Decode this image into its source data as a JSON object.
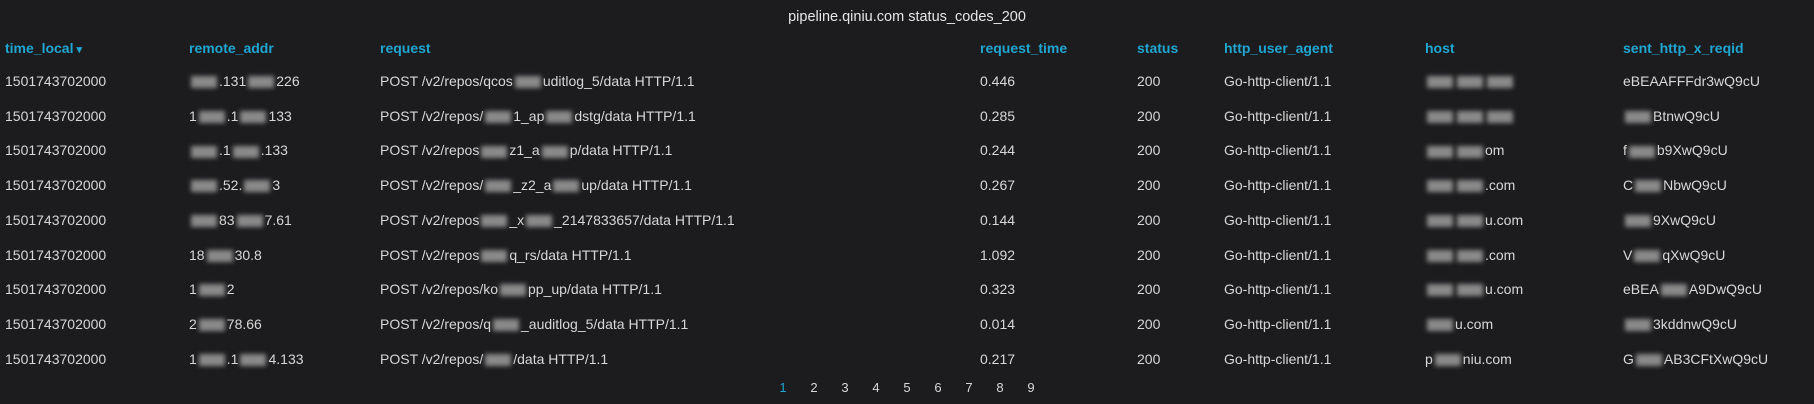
{
  "title": "pipeline.qiniu.com status_codes_200",
  "columns": [
    "time_local",
    "remote_addr",
    "request",
    "request_time",
    "status",
    "http_user_agent",
    "host",
    "sent_http_x_reqid"
  ],
  "sort_indicator": "▾",
  "accent_color": "#1fa6d2",
  "redacted_marker": "[redacted]",
  "rows": [
    [
      [
        "1501743702000"
      ],
      [
        null,
        ".131",
        null,
        "226"
      ],
      [
        "POST /v2/repos/qcos",
        null,
        "uditlog_5/data HTTP/1.1"
      ],
      [
        "0.446"
      ],
      [
        "200"
      ],
      [
        "Go-http-client/1.1"
      ],
      [
        null,
        null,
        null
      ],
      [
        "eBEAAFFFdr3wQ9cU"
      ]
    ],
    [
      [
        "1501743702000"
      ],
      [
        "1",
        null,
        ".1",
        null,
        "133"
      ],
      [
        "POST /v2/repos/",
        null,
        "1_ap",
        null,
        "dstg/data HTTP/1.1"
      ],
      [
        "0.285"
      ],
      [
        "200"
      ],
      [
        "Go-http-client/1.1"
      ],
      [
        null,
        null,
        null
      ],
      [
        null,
        "BtnwQ9cU"
      ]
    ],
    [
      [
        "1501743702000"
      ],
      [
        null,
        ".1",
        null,
        ".133"
      ],
      [
        "POST /v2/repos",
        null,
        "z1_a",
        null,
        "p/data HTTP/1.1"
      ],
      [
        "0.244"
      ],
      [
        "200"
      ],
      [
        "Go-http-client/1.1"
      ],
      [
        null,
        null,
        "om"
      ],
      [
        "f",
        null,
        "b9XwQ9cU"
      ]
    ],
    [
      [
        "1501743702000"
      ],
      [
        null,
        ".52.",
        null,
        "3"
      ],
      [
        "POST /v2/repos/",
        null,
        "_z2_a",
        null,
        "up/data HTTP/1.1"
      ],
      [
        "0.267"
      ],
      [
        "200"
      ],
      [
        "Go-http-client/1.1"
      ],
      [
        null,
        null,
        ".com"
      ],
      [
        "C",
        null,
        "NbwQ9cU"
      ]
    ],
    [
      [
        "1501743702000"
      ],
      [
        null,
        "83",
        null,
        "7.61"
      ],
      [
        "POST /v2/repos",
        null,
        "_x",
        null,
        "_2147833657/data HTTP/1.1"
      ],
      [
        "0.144"
      ],
      [
        "200"
      ],
      [
        "Go-http-client/1.1"
      ],
      [
        null,
        null,
        "u.com"
      ],
      [
        null,
        "9XwQ9cU"
      ]
    ],
    [
      [
        "1501743702000"
      ],
      [
        "18",
        null,
        "30.8"
      ],
      [
        "POST /v2/repos",
        null,
        "q_rs/data HTTP/1.1"
      ],
      [
        "1.092"
      ],
      [
        "200"
      ],
      [
        "Go-http-client/1.1"
      ],
      [
        null,
        null,
        ".com"
      ],
      [
        "V",
        null,
        "qXwQ9cU"
      ]
    ],
    [
      [
        "1501743702000"
      ],
      [
        "1",
        null,
        "2"
      ],
      [
        "POST /v2/repos/ko",
        null,
        "pp_up/data HTTP/1.1"
      ],
      [
        "0.323"
      ],
      [
        "200"
      ],
      [
        "Go-http-client/1.1"
      ],
      [
        null,
        null,
        "u.com"
      ],
      [
        "eBEA",
        null,
        "A9DwQ9cU"
      ]
    ],
    [
      [
        "1501743702000"
      ],
      [
        "2",
        null,
        "78.66"
      ],
      [
        "POST /v2/repos/q",
        null,
        "_auditlog_5/data HTTP/1.1"
      ],
      [
        "0.014"
      ],
      [
        "200"
      ],
      [
        "Go-http-client/1.1"
      ],
      [
        null,
        "u.com"
      ],
      [
        null,
        "3kddnwQ9cU"
      ]
    ],
    [
      [
        "1501743702000"
      ],
      [
        "1",
        null,
        ".1",
        null,
        "4.133"
      ],
      [
        "POST /v2/repos/",
        null,
        "/data HTTP/1.1"
      ],
      [
        "0.217"
      ],
      [
        "200"
      ],
      [
        "Go-http-client/1.1"
      ],
      [
        "p",
        null,
        "niu.com"
      ],
      [
        "G",
        null,
        "AB3CFtXwQ9cU"
      ]
    ]
  ],
  "pagination": {
    "pages": [
      "1",
      "2",
      "3",
      "4",
      "5",
      "6",
      "7",
      "8",
      "9"
    ],
    "current": "1"
  }
}
